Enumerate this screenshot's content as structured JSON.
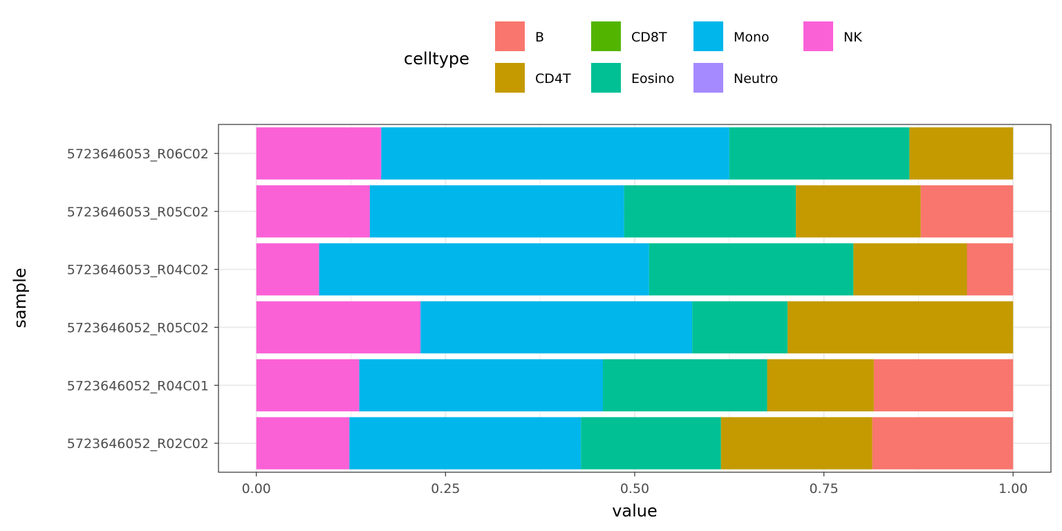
{
  "chart_data": {
    "type": "bar",
    "orientation": "horizontal",
    "stacked": true,
    "xlabel": "value",
    "ylabel": "sample",
    "xlim": [
      -0.05,
      1.05
    ],
    "x_ticks": [
      {
        "value": 0,
        "label": "0.00"
      },
      {
        "value": 0.25,
        "label": "0.25"
      },
      {
        "value": 0.5,
        "label": "0.50"
      },
      {
        "value": 0.75,
        "label": "0.75"
      },
      {
        "value": 1,
        "label": "1.00"
      }
    ],
    "legend": {
      "title": "celltype",
      "position": "top",
      "items": [
        {
          "name": "B",
          "color": "#F8766D"
        },
        {
          "name": "CD4T",
          "color": "#C49A00"
        },
        {
          "name": "CD8T",
          "color": "#53B400"
        },
        {
          "name": "Eosino",
          "color": "#00C094"
        },
        {
          "name": "Mono",
          "color": "#00B6EB"
        },
        {
          "name": "Neutro",
          "color": "#A58AFF"
        },
        {
          "name": "NK",
          "color": "#FB61D7"
        }
      ]
    },
    "grid": true,
    "categories": [
      "5723646053_R06C02",
      "5723646053_R05C02",
      "5723646053_R04C02",
      "5723646052_R05C02",
      "5723646052_R04C01",
      "5723646052_R02C02"
    ],
    "stack_order": [
      "NK",
      "Mono",
      "Eosino",
      "CD4T",
      "B"
    ],
    "series": [
      {
        "name": "NK",
        "values": [
          0.165,
          0.15,
          0.083,
          0.217,
          0.136,
          0.123
        ]
      },
      {
        "name": "Mono",
        "values": [
          0.46,
          0.336,
          0.436,
          0.359,
          0.322,
          0.306
        ]
      },
      {
        "name": "Eosino",
        "values": [
          0.238,
          0.227,
          0.27,
          0.126,
          0.217,
          0.185
        ]
      },
      {
        "name": "CD4T",
        "values": [
          0.137,
          0.165,
          0.15,
          0.298,
          0.141,
          0.2
        ]
      },
      {
        "name": "B",
        "values": [
          0.0,
          0.122,
          0.061,
          0.0,
          0.184,
          0.186
        ]
      }
    ]
  }
}
